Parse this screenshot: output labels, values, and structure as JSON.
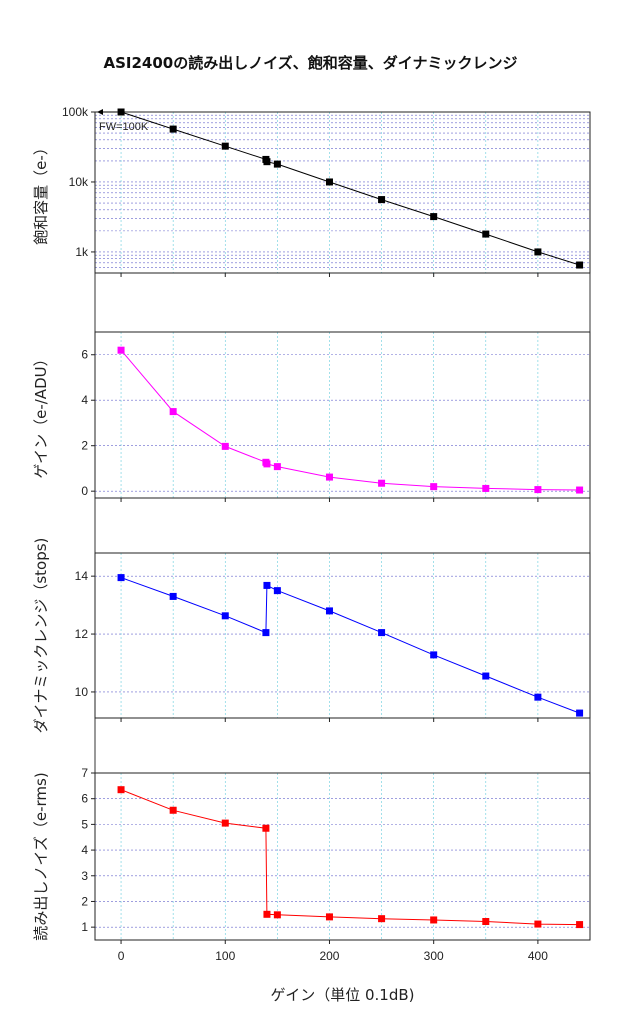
{
  "title": "ASI2400の読み出しノイズ、飽和容量、ダイナミックレンジ",
  "chart_data": {
    "type": "line",
    "x_shared": true,
    "xlabel": "ゲイン（単位 0.1dB)",
    "xlim": [
      -25,
      450
    ],
    "xticks": [
      0,
      100,
      200,
      300,
      400
    ],
    "grid": true,
    "panels": [
      {
        "id": "fullwell",
        "ylabel": "飽和容量（e-）",
        "yscale": "log",
        "ylim": [
          500,
          100000
        ],
        "yticks": [
          {
            "value": 1000,
            "label": "1k"
          },
          {
            "value": 10000,
            "label": "10k"
          },
          {
            "value": 100000,
            "label": "100k"
          }
        ],
        "color": "#000000",
        "annotation": "FW=100K",
        "x": [
          0,
          50,
          100,
          139,
          140,
          150,
          200,
          250,
          300,
          350,
          400,
          440
        ],
        "y": [
          100000,
          57000,
          32500,
          21000,
          19500,
          18000,
          10000,
          5600,
          3200,
          1800,
          1000,
          650
        ]
      },
      {
        "id": "gain",
        "ylabel": "ゲイン（e-/ADU）",
        "ylim": [
          -0.3,
          7
        ],
        "yticks": [
          {
            "value": 0,
            "label": "0"
          },
          {
            "value": 2,
            "label": "2"
          },
          {
            "value": 4,
            "label": "4"
          },
          {
            "value": 6,
            "label": "6"
          }
        ],
        "color": "#ff00ff",
        "x": [
          0,
          50,
          100,
          139,
          140,
          150,
          200,
          250,
          300,
          350,
          400,
          440
        ],
        "y": [
          6.2,
          3.5,
          1.97,
          1.27,
          1.2,
          1.08,
          0.62,
          0.35,
          0.2,
          0.12,
          0.07,
          0.05
        ]
      },
      {
        "id": "dynamic_range",
        "ylabel": "ダイナミックレンジ（stops)",
        "ylim": [
          9.1,
          14.8
        ],
        "yticks": [
          {
            "value": 10,
            "label": "10"
          },
          {
            "value": 12,
            "label": "12"
          },
          {
            "value": 14,
            "label": "14"
          }
        ],
        "color": "#0000ff",
        "x": [
          0,
          50,
          100,
          139,
          140,
          150,
          200,
          250,
          300,
          350,
          400,
          440
        ],
        "y": [
          13.95,
          13.3,
          12.63,
          12.05,
          13.68,
          13.5,
          12.8,
          12.05,
          11.28,
          10.55,
          9.82,
          9.27
        ]
      },
      {
        "id": "read_noise",
        "ylabel": "読み出しノイズ（e-rms)",
        "ylim": [
          0.5,
          7
        ],
        "yticks": [
          {
            "value": 1,
            "label": "1"
          },
          {
            "value": 2,
            "label": "2"
          },
          {
            "value": 3,
            "label": "3"
          },
          {
            "value": 4,
            "label": "4"
          },
          {
            "value": 5,
            "label": "5"
          },
          {
            "value": 6,
            "label": "6"
          },
          {
            "value": 7,
            "label": "7"
          }
        ],
        "color": "#ff0000",
        "x": [
          0,
          50,
          100,
          139,
          140,
          150,
          200,
          250,
          300,
          350,
          400,
          440
        ],
        "y": [
          6.35,
          5.55,
          5.05,
          4.85,
          1.5,
          1.48,
          1.4,
          1.33,
          1.28,
          1.22,
          1.12,
          1.1
        ]
      }
    ]
  }
}
